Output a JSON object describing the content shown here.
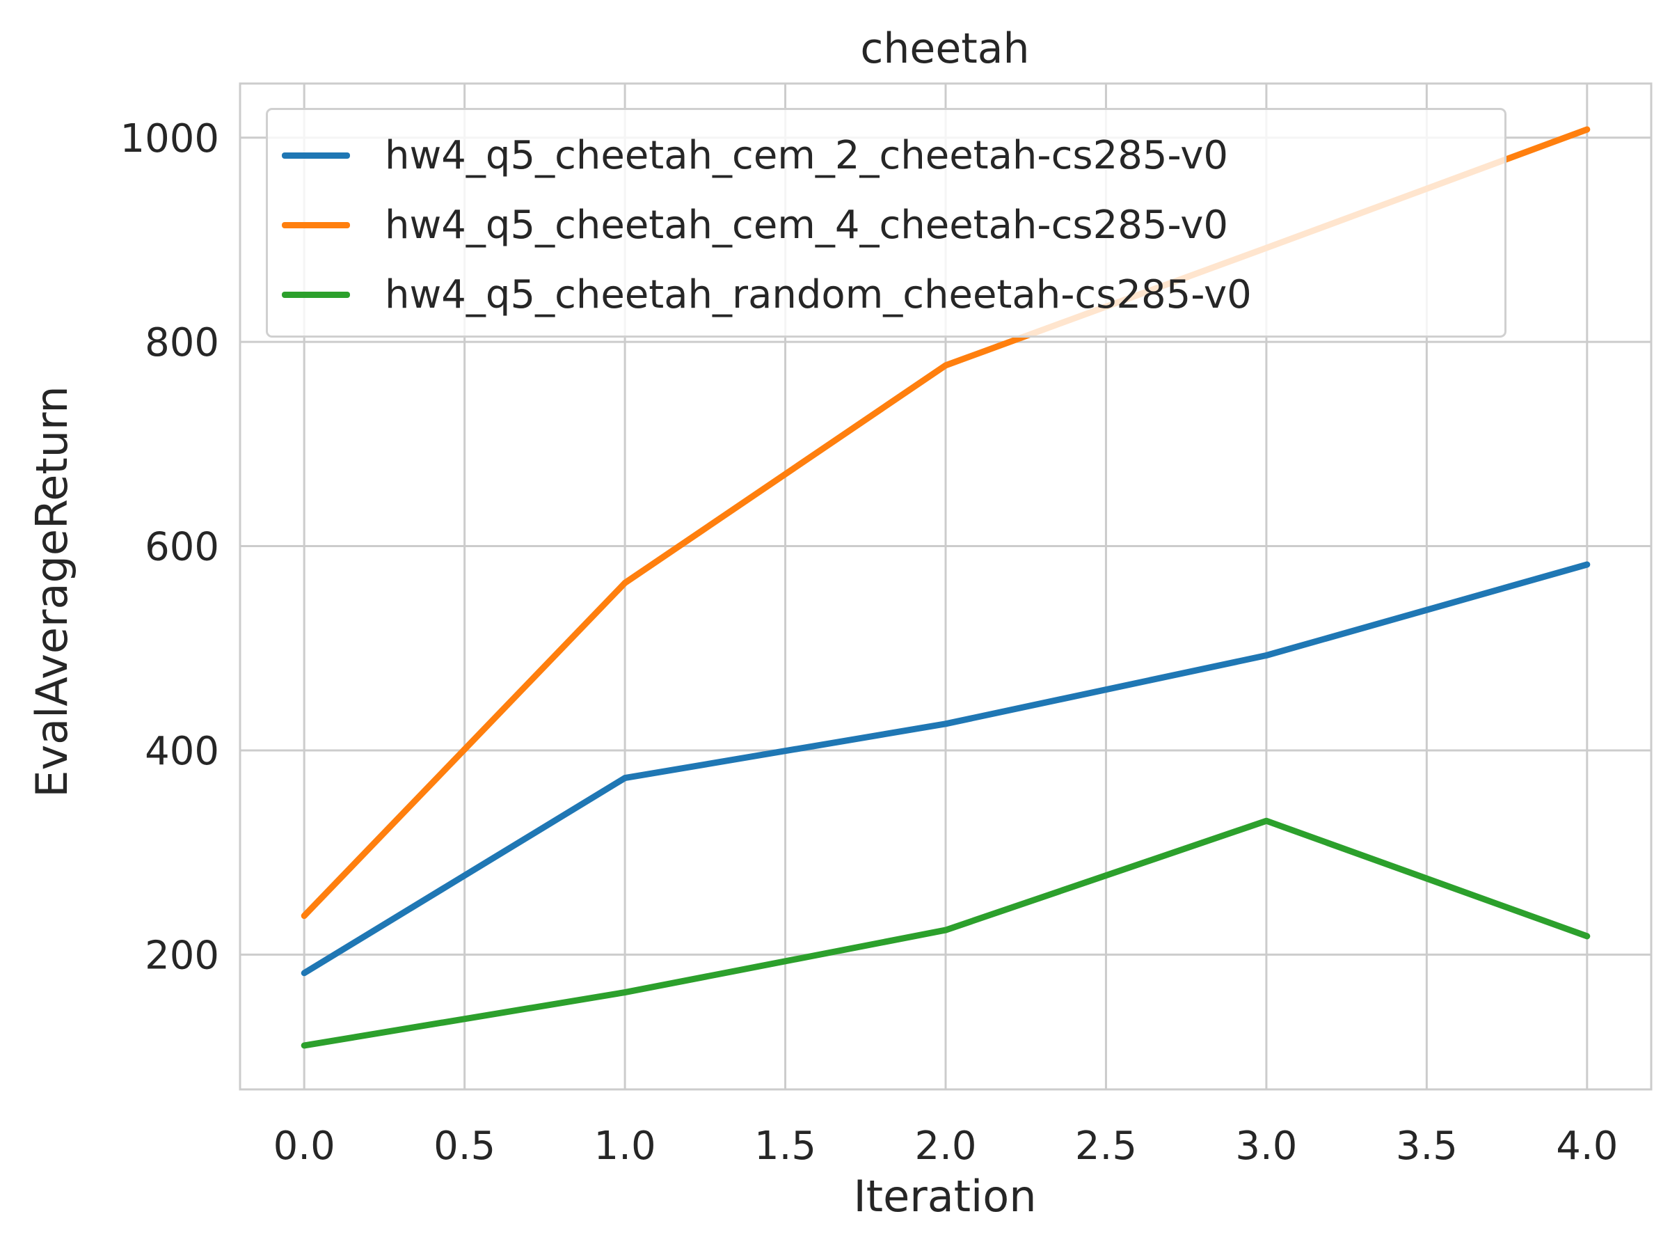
{
  "chart_data": {
    "type": "line",
    "title": "cheetah",
    "xlabel": "Iteration",
    "ylabel": "EvalAverageReturn",
    "x": [
      0,
      1,
      2,
      3,
      4
    ],
    "xlim": [
      -0.2,
      4.2
    ],
    "ylim": [
      68,
      1053
    ],
    "xticks": [
      0.0,
      0.5,
      1.0,
      1.5,
      2.0,
      2.5,
      3.0,
      3.5,
      4.0
    ],
    "xtick_labels": [
      "0.0",
      "0.5",
      "1.0",
      "1.5",
      "2.0",
      "2.5",
      "3.0",
      "3.5",
      "4.0"
    ],
    "yticks": [
      200,
      400,
      600,
      800,
      1000
    ],
    "ytick_labels": [
      "200",
      "400",
      "600",
      "800",
      "1000"
    ],
    "grid": true,
    "legend_position": "top",
    "series": [
      {
        "name": "hw4_q5_cheetah_cem_2_cheetah-cs285-v0",
        "color": "#1f77b4",
        "values": [
          182,
          373,
          426,
          493,
          582
        ]
      },
      {
        "name": "hw4_q5_cheetah_cem_4_cheetah-cs285-v0",
        "color": "#ff7f0e",
        "values": [
          238,
          564,
          777,
          892,
          1008
        ]
      },
      {
        "name": "hw4_q5_cheetah_random_cheetah-cs285-v0",
        "color": "#2ca02c",
        "values": [
          111,
          163,
          224,
          331,
          218
        ]
      }
    ]
  }
}
